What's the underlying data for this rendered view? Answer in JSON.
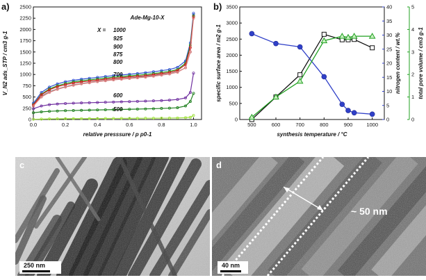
{
  "chart_data": [
    {
      "panel": "a)",
      "type": "line",
      "title": "Ade-Mg-10-X",
      "legend_title": "X =",
      "xlabel": "relative presssure / p p0-1",
      "ylabel": "V_N2 ads_STP / cm3 g-1",
      "xlim": [
        0,
        1.05
      ],
      "ylim": [
        0,
        2500
      ],
      "xticks": [
        "0.0",
        "0.2",
        "0.4",
        "0.6",
        "0.8",
        "1.0"
      ],
      "yticks": [
        "0",
        "250",
        "500",
        "750",
        "1000",
        "1250",
        "1500",
        "1750",
        "2000",
        "2250",
        "2500"
      ],
      "x": [
        0.0,
        0.05,
        0.1,
        0.15,
        0.2,
        0.25,
        0.3,
        0.35,
        0.4,
        0.45,
        0.5,
        0.55,
        0.6,
        0.65,
        0.7,
        0.75,
        0.8,
        0.85,
        0.9,
        0.95,
        0.98,
        1.0
      ],
      "series": [
        {
          "name": "1000",
          "color": "#8a8a8a",
          "values": [
            330,
            520,
            620,
            680,
            730,
            770,
            800,
            825,
            850,
            870,
            890,
            905,
            920,
            940,
            955,
            975,
            995,
            1020,
            1060,
            1150,
            1500,
            2330
          ]
        },
        {
          "name": "925",
          "color": "#3050d0",
          "values": [
            360,
            600,
            720,
            790,
            840,
            870,
            895,
            915,
            935,
            955,
            975,
            990,
            1005,
            1020,
            1040,
            1060,
            1085,
            1110,
            1160,
            1300,
            1700,
            2360
          ]
        },
        {
          "name": "900",
          "color": "#20a020",
          "values": [
            330,
            560,
            680,
            750,
            800,
            835,
            860,
            880,
            900,
            920,
            940,
            955,
            970,
            985,
            1000,
            1020,
            1045,
            1070,
            1110,
            1250,
            1650,
            2300
          ]
        },
        {
          "name": "875",
          "color": "#d01818",
          "values": [
            320,
            550,
            660,
            730,
            775,
            810,
            835,
            855,
            875,
            895,
            915,
            930,
            945,
            960,
            975,
            995,
            1020,
            1045,
            1090,
            1220,
            1600,
            2280
          ]
        },
        {
          "name": "800",
          "color": "#e08080",
          "values": [
            300,
            500,
            600,
            670,
            720,
            760,
            790,
            815,
            840,
            860,
            880,
            895,
            910,
            925,
            940,
            960,
            985,
            1010,
            1050,
            1150,
            1500,
            2250
          ]
        },
        {
          "name": "700",
          "color": "#7030a0",
          "values": [
            240,
            300,
            330,
            345,
            355,
            362,
            368,
            373,
            378,
            383,
            388,
            393,
            398,
            403,
            408,
            414,
            420,
            430,
            445,
            480,
            600,
            1030
          ]
        },
        {
          "name": "600",
          "color": "#208020",
          "values": [
            150,
            170,
            182,
            190,
            196,
            200,
            204,
            208,
            212,
            216,
            220,
            224,
            228,
            232,
            236,
            240,
            246,
            252,
            262,
            300,
            400,
            580
          ]
        },
        {
          "name": "500",
          "color": "#a0e040",
          "values": [
            5,
            10,
            13,
            15,
            17,
            19,
            20,
            21,
            22,
            23,
            24,
            25,
            26,
            27,
            28,
            29,
            30,
            32,
            35,
            40,
            50,
            90
          ]
        }
      ]
    },
    {
      "panel": "b)",
      "type": "line",
      "xlabel": "synthesis temperature / °C",
      "ylabel_left": "specific surface area / m2 g-1",
      "ylabel_right1": "nitrogen content / wt.%",
      "ylabel_right2": "total pore volume / cm3 g-1",
      "xlim": [
        450,
        1050
      ],
      "xticks": [
        "500",
        "600",
        "700",
        "800",
        "900",
        "1000"
      ],
      "yleft_lim": [
        0,
        3500
      ],
      "yleft_ticks": [
        "0",
        "500",
        "1000",
        "1500",
        "2000",
        "2500",
        "3000",
        "3500"
      ],
      "yright1_lim": [
        0,
        40
      ],
      "yright1_ticks": [
        "0",
        "5",
        "10",
        "15",
        "20",
        "25",
        "30",
        "35",
        "40"
      ],
      "yright2_lim": [
        0,
        5
      ],
      "yright2_ticks": [
        "0",
        "1",
        "2",
        "3",
        "4",
        "5"
      ],
      "series": [
        {
          "name": "specific surface area",
          "axis": "left",
          "color": "#111111",
          "marker": "square",
          "x": [
            500,
            600,
            700,
            800,
            875,
            900,
            925,
            1000
          ],
          "y": [
            0,
            700,
            1390,
            2650,
            2480,
            2480,
            2490,
            2230
          ]
        },
        {
          "name": "nitrogen content",
          "axis": "right1",
          "color": "#3040c8",
          "marker": "circle",
          "x": [
            500,
            600,
            700,
            800,
            875,
            900,
            925,
            1000
          ],
          "y": [
            30.5,
            27,
            25.8,
            15.2,
            5.4,
            3.2,
            2.4,
            1.9
          ]
        },
        {
          "name": "total pore volume",
          "axis": "right2",
          "color": "#20a020",
          "marker": "triangle",
          "x": [
            500,
            600,
            700,
            800,
            875,
            900,
            925,
            1000
          ],
          "y": [
            0.1,
            1.0,
            1.7,
            3.5,
            3.7,
            3.65,
            3.7,
            3.7
          ]
        }
      ]
    }
  ],
  "panels": {
    "c": {
      "letter": "c",
      "scalebar": "250 nm"
    },
    "d": {
      "letter": "d",
      "scalebar": "40 nm",
      "annotation": "~ 50 nm"
    }
  }
}
